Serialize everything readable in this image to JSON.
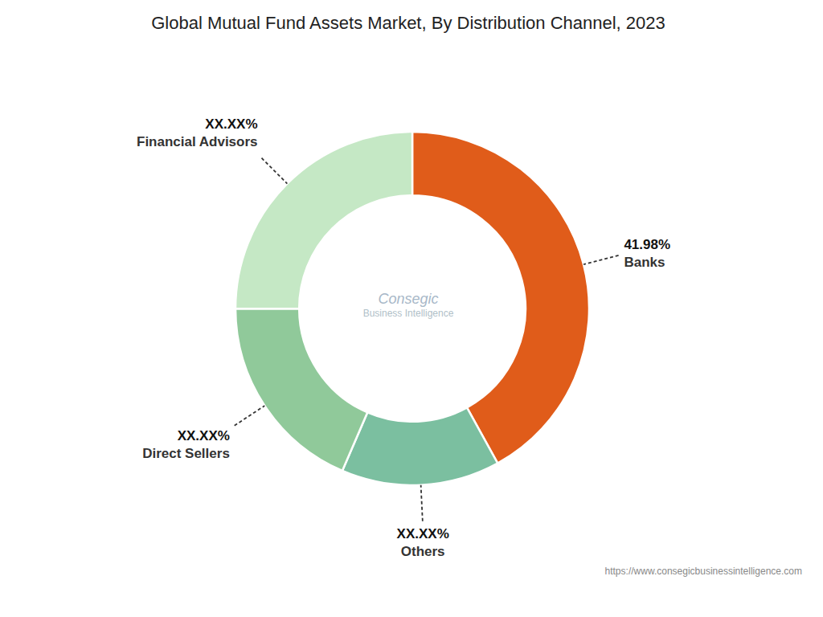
{
  "chart_data": {
    "type": "pie",
    "title": "Global Mutual Fund Assets Market, By Distribution Channel, 2023",
    "categories": [
      "Banks",
      "Others",
      "Direct Sellers",
      "Financial Advisors"
    ],
    "values": [
      41.98,
      14.5,
      18.5,
      25.02
    ],
    "value_labels": [
      "41.98%",
      "XX.XX%",
      "XX.XX%",
      "XX.XX%"
    ],
    "colors": [
      "#E05C1A",
      "#7BBFA0",
      "#90C99A",
      "#C5E8C5"
    ],
    "data_labels": true,
    "annotations": [
      "Consegic",
      "Business Intelligence",
      "https://www.consegicbusinessintelligence.com"
    ]
  }
}
